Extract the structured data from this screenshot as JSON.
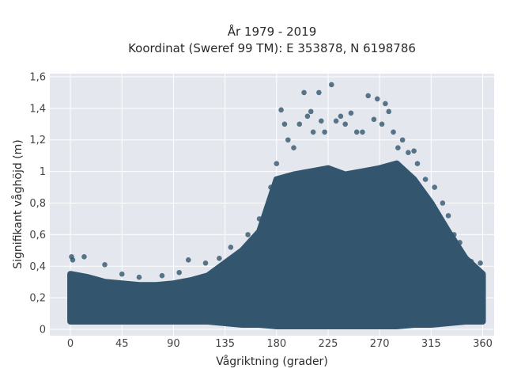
{
  "chart_data": {
    "type": "scatter",
    "title": "År 1979 - 2019",
    "subtitle": "Koordinat (Sweref 99 TM): E 353878, N 6198786",
    "xlabel": "Vågriktning (grader)",
    "ylabel": "Signifikant våghöjd (m)",
    "xlim": [
      -18,
      370
    ],
    "ylim": [
      -0.04,
      1.62
    ],
    "xticks": [
      0,
      45,
      90,
      135,
      180,
      225,
      270,
      315,
      360
    ],
    "xtick_labels": [
      "0",
      "45",
      "90",
      "135",
      "180",
      "225",
      "270",
      "315",
      "360"
    ],
    "yticks": [
      0,
      0.2,
      0.4,
      0.6,
      0.8,
      1.0,
      1.2,
      1.4,
      1.6
    ],
    "ytick_labels": [
      "0",
      "0,2",
      "0,4",
      "0,6",
      "0,8",
      "1",
      "1,2",
      "1,4",
      "1,6"
    ],
    "grid": true,
    "legend": false,
    "colors": {
      "marker": "#33566e",
      "plot_bg": "#e5e7ef",
      "grid": "#ffffff"
    },
    "band": {
      "x": [
        0,
        15,
        30,
        45,
        60,
        75,
        90,
        105,
        120,
        135,
        150,
        165,
        180,
        195,
        210,
        225,
        240,
        255,
        270,
        285,
        300,
        315,
        330,
        345,
        360
      ],
      "ymin": [
        0.05,
        0.05,
        0.05,
        0.05,
        0.05,
        0.05,
        0.05,
        0.05,
        0.05,
        0.04,
        0.03,
        0.03,
        0.02,
        0.02,
        0.02,
        0.02,
        0.02,
        0.02,
        0.02,
        0.02,
        0.03,
        0.03,
        0.04,
        0.05,
        0.05
      ],
      "ymax": [
        0.35,
        0.33,
        0.3,
        0.29,
        0.28,
        0.28,
        0.29,
        0.31,
        0.34,
        0.42,
        0.5,
        0.62,
        0.95,
        0.98,
        1.0,
        1.02,
        0.98,
        1.0,
        1.02,
        1.05,
        0.95,
        0.8,
        0.62,
        0.45,
        0.35
      ]
    },
    "outliers": [
      {
        "x": 1,
        "y": 0.46
      },
      {
        "x": 2,
        "y": 0.44
      },
      {
        "x": 12,
        "y": 0.46
      },
      {
        "x": 30,
        "y": 0.41
      },
      {
        "x": 45,
        "y": 0.35
      },
      {
        "x": 60,
        "y": 0.33
      },
      {
        "x": 80,
        "y": 0.34
      },
      {
        "x": 95,
        "y": 0.36
      },
      {
        "x": 103,
        "y": 0.44
      },
      {
        "x": 118,
        "y": 0.42
      },
      {
        "x": 130,
        "y": 0.45
      },
      {
        "x": 140,
        "y": 0.52
      },
      {
        "x": 155,
        "y": 0.6
      },
      {
        "x": 165,
        "y": 0.7
      },
      {
        "x": 175,
        "y": 0.9
      },
      {
        "x": 180,
        "y": 1.05
      },
      {
        "x": 184,
        "y": 1.39
      },
      {
        "x": 187,
        "y": 1.3
      },
      {
        "x": 190,
        "y": 1.2
      },
      {
        "x": 195,
        "y": 1.15
      },
      {
        "x": 200,
        "y": 1.3
      },
      {
        "x": 204,
        "y": 1.5
      },
      {
        "x": 207,
        "y": 1.35
      },
      {
        "x": 210,
        "y": 1.38
      },
      {
        "x": 212,
        "y": 1.25
      },
      {
        "x": 217,
        "y": 1.5
      },
      {
        "x": 219,
        "y": 1.32
      },
      {
        "x": 222,
        "y": 1.25
      },
      {
        "x": 228,
        "y": 1.55
      },
      {
        "x": 232,
        "y": 1.32
      },
      {
        "x": 236,
        "y": 1.35
      },
      {
        "x": 240,
        "y": 1.3
      },
      {
        "x": 245,
        "y": 1.37
      },
      {
        "x": 250,
        "y": 1.25
      },
      {
        "x": 255,
        "y": 1.25
      },
      {
        "x": 260,
        "y": 1.48
      },
      {
        "x": 265,
        "y": 1.33
      },
      {
        "x": 268,
        "y": 1.46
      },
      {
        "x": 272,
        "y": 1.3
      },
      {
        "x": 275,
        "y": 1.43
      },
      {
        "x": 278,
        "y": 1.38
      },
      {
        "x": 282,
        "y": 1.25
      },
      {
        "x": 286,
        "y": 1.15
      },
      {
        "x": 290,
        "y": 1.2
      },
      {
        "x": 295,
        "y": 1.12
      },
      {
        "x": 300,
        "y": 1.13
      },
      {
        "x": 303,
        "y": 1.05
      },
      {
        "x": 310,
        "y": 0.95
      },
      {
        "x": 318,
        "y": 0.9
      },
      {
        "x": 325,
        "y": 0.8
      },
      {
        "x": 330,
        "y": 0.72
      },
      {
        "x": 335,
        "y": 0.6
      },
      {
        "x": 340,
        "y": 0.55
      },
      {
        "x": 350,
        "y": 0.43
      },
      {
        "x": 358,
        "y": 0.42
      }
    ]
  }
}
